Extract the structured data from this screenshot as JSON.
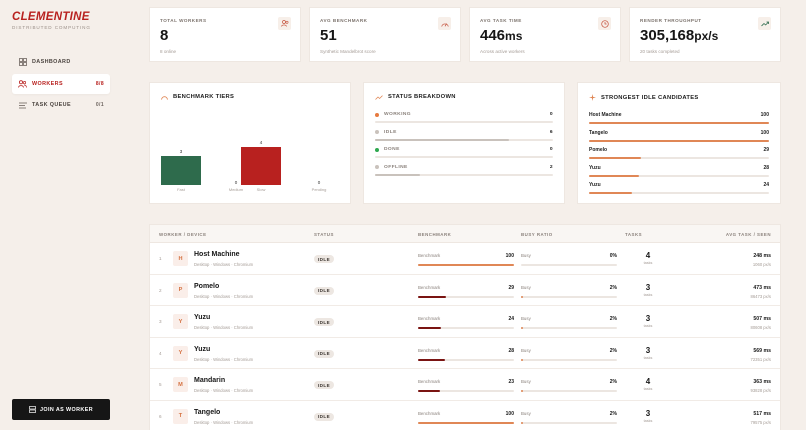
{
  "brand": {
    "name": "CLEMENTINE",
    "tagline": "DISTRIBUTED COMPUTING"
  },
  "nav": [
    {
      "label": "DASHBOARD",
      "count": "",
      "icon": "dashboard-icon"
    },
    {
      "label": "WORKERS",
      "count": "8/8",
      "icon": "workers-icon"
    },
    {
      "label": "TASK QUEUE",
      "count": "0/1",
      "icon": "queue-icon"
    }
  ],
  "join_label": "JOIN AS WORKER",
  "stats": [
    {
      "label": "TOTAL WORKERS",
      "value": "8",
      "unit": "",
      "sub": "8 online",
      "icon": "users-icon"
    },
    {
      "label": "AVG BENCHMARK",
      "value": "51",
      "unit": "",
      "sub": "Synthetic Mandelbrot score",
      "icon": "gauge-icon"
    },
    {
      "label": "AVG TASK TIME",
      "value": "446",
      "unit": "ms",
      "sub": "Across active workers",
      "icon": "clock-icon"
    },
    {
      "label": "RENDER THROUGHPUT",
      "value": "305,168",
      "unit": "px/s",
      "sub": "20 tasks completed",
      "icon": "trend-icon"
    }
  ],
  "tiers": {
    "title": "BENCHMARK TIERS",
    "chart_data": {
      "type": "bar",
      "categories": [
        "Fast",
        "Medium",
        "Slow",
        "Pending"
      ],
      "values": [
        3,
        0,
        4,
        0
      ],
      "colors": [
        "#2e6b4c",
        "#bdb5ae",
        "#b8211f",
        "#bdb5ae"
      ]
    }
  },
  "status": {
    "title": "STATUS BREAKDOWN",
    "total": 8,
    "rows": [
      {
        "label": "WORKING",
        "count": 0,
        "color": "#e67a3f"
      },
      {
        "label": "IDLE",
        "count": 6,
        "color": "#c9c2bc"
      },
      {
        "label": "DONE",
        "count": 0,
        "color": "#2ea84f"
      },
      {
        "label": "OFFLINE",
        "count": 2,
        "color": "#c9c2bc"
      }
    ]
  },
  "candidates": {
    "title": "STRONGEST IDLE CANDIDATES",
    "max": 100,
    "rows": [
      {
        "name": "Host Machine",
        "score": 100
      },
      {
        "name": "Tangelo",
        "score": 100
      },
      {
        "name": "Pomelo",
        "score": 29
      },
      {
        "name": "Yuzu",
        "score": 28
      },
      {
        "name": "Yuzu",
        "score": 24
      }
    ]
  },
  "table": {
    "headers": [
      "WORKER / DEVICE",
      "STATUS",
      "BENCHMARK",
      "BUSY RATIO",
      "TASKS",
      "AVG TASK / SEEN"
    ],
    "bench_label": "Benchmark",
    "busy_label": "Busy",
    "tasks_label": "tasks",
    "rows": [
      {
        "idx": "1",
        "initial": "H",
        "name": "Host Machine",
        "meta": "Desktop · Windows · Chromium",
        "status": "IDLE",
        "bench": 100,
        "busy": "0%",
        "busy_value": 0,
        "tasks": "4",
        "avg": "248 ms",
        "px": "1060 px/s"
      },
      {
        "idx": "2",
        "initial": "P",
        "name": "Pomelo",
        "meta": "Desktop · Windows · Chromium",
        "status": "IDLE",
        "bench": 29,
        "busy": "2%",
        "busy_value": 2,
        "tasks": "3",
        "avg": "473 ms",
        "px": "86473 px/s"
      },
      {
        "idx": "3",
        "initial": "Y",
        "name": "Yuzu",
        "meta": "Desktop · Windows · Chromium",
        "status": "IDLE",
        "bench": 24,
        "busy": "2%",
        "busy_value": 2,
        "tasks": "3",
        "avg": "507 ms",
        "px": "80608 px/s"
      },
      {
        "idx": "4",
        "initial": "Y",
        "name": "Yuzu",
        "meta": "Desktop · Windows · Chromium",
        "status": "IDLE",
        "bench": 28,
        "busy": "2%",
        "busy_value": 2,
        "tasks": "3",
        "avg": "569 ms",
        "px": "72351 px/s"
      },
      {
        "idx": "5",
        "initial": "M",
        "name": "Mandarin",
        "meta": "Desktop · Windows · Chromium",
        "status": "IDLE",
        "bench": 23,
        "busy": "2%",
        "busy_value": 2,
        "tasks": "4",
        "avg": "363 ms",
        "px": "93828 px/s"
      },
      {
        "idx": "6",
        "initial": "T",
        "name": "Tangelo",
        "meta": "Desktop · Windows · Chromium",
        "status": "IDLE",
        "bench": 100,
        "busy": "2%",
        "busy_value": 2,
        "tasks": "3",
        "avg": "517 ms",
        "px": "79575 px/s"
      }
    ]
  },
  "colors": {
    "accent": "#b8211f",
    "orange": "#e08756",
    "dark_red": "#7a1412"
  }
}
